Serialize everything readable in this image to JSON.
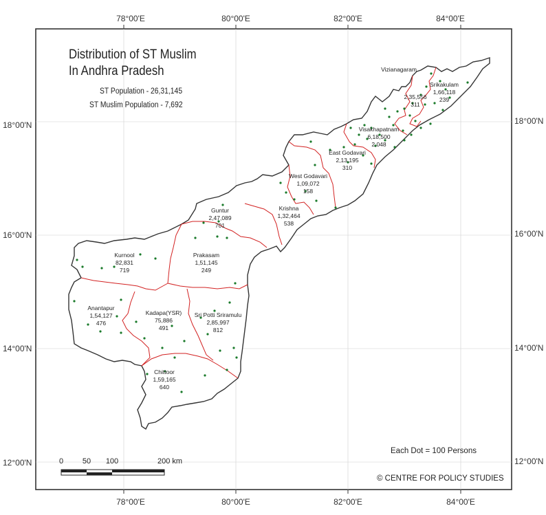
{
  "map": {
    "title_line1": "Distribution of ST Muslim",
    "title_line2": "In Andhra Pradesh",
    "st_population": "ST Population - 26,31,145",
    "st_muslim_population": "ST Muslim Population - 7,692",
    "dot_note": "Each Dot = 100 Persons",
    "credit": "© CENTRE FOR POLICY STUDIES",
    "lon_ticks": [
      "78°00'E",
      "80°00'E",
      "82°00'E",
      "84°00'E"
    ],
    "lat_ticks": [
      "18°00'N",
      "16°00'N",
      "14°00'N",
      "12°00'N"
    ],
    "scale_labels": [
      "0",
      "50",
      "100",
      "200 km"
    ],
    "dot_color": "#1a7a2a",
    "district_border_color": "#d22020",
    "state_border_color": "#333333",
    "districts": [
      {
        "id": "vizianagaram",
        "name": "Vizianagaram",
        "lines": [
          "Vizianagaram"
        ]
      },
      {
        "id": "srikakulam",
        "name": "Srikakulam",
        "lines": [
          "Srikakulam",
          "1,66,118",
          "239"
        ]
      },
      {
        "id": "vizianagaram-vals",
        "name": "Vizianagaram values",
        "lines": [
          "2,35,556",
          "311"
        ]
      },
      {
        "id": "visakhapatnam",
        "name": "Visakhapatnam",
        "lines": [
          "Visakhapatnam",
          "6,18,500",
          "2,048"
        ]
      },
      {
        "id": "east-godavari",
        "name": "East Godavari",
        "lines": [
          "East Godavari",
          "2,13,195",
          "310"
        ]
      },
      {
        "id": "west-godavari",
        "name": "West Godavari",
        "lines": [
          "West Godavari",
          "1,09,072",
          "158"
        ]
      },
      {
        "id": "krishna",
        "name": "Krishna",
        "lines": [
          "Krishna",
          "1,32,464",
          "538"
        ]
      },
      {
        "id": "guntur",
        "name": "Guntur",
        "lines": [
          "Guntur",
          "2,47,089",
          "701"
        ]
      },
      {
        "id": "prakasam",
        "name": "Prakasam",
        "lines": [
          "Prakasam",
          "1,51,145",
          "249"
        ]
      },
      {
        "id": "kurnool",
        "name": "Kurnool",
        "lines": [
          "Kurnool",
          "82,831",
          "719"
        ]
      },
      {
        "id": "anantapur",
        "name": "Anantapur",
        "lines": [
          "Anantapur",
          "1,54,127",
          "476"
        ]
      },
      {
        "id": "kadapa",
        "name": "Kadapa(YSR)",
        "lines": [
          "Kadapa(YSR)",
          "75,886",
          "491"
        ]
      },
      {
        "id": "nellore",
        "name": "Sri Potti Sriramulu",
        "lines": [
          "Sri Potti Sriramulu",
          "2,85,997",
          "812"
        ]
      },
      {
        "id": "chittoor",
        "name": "Chittoor",
        "lines": [
          "Chittoor",
          "1,59,165",
          "640"
        ]
      }
    ]
  }
}
